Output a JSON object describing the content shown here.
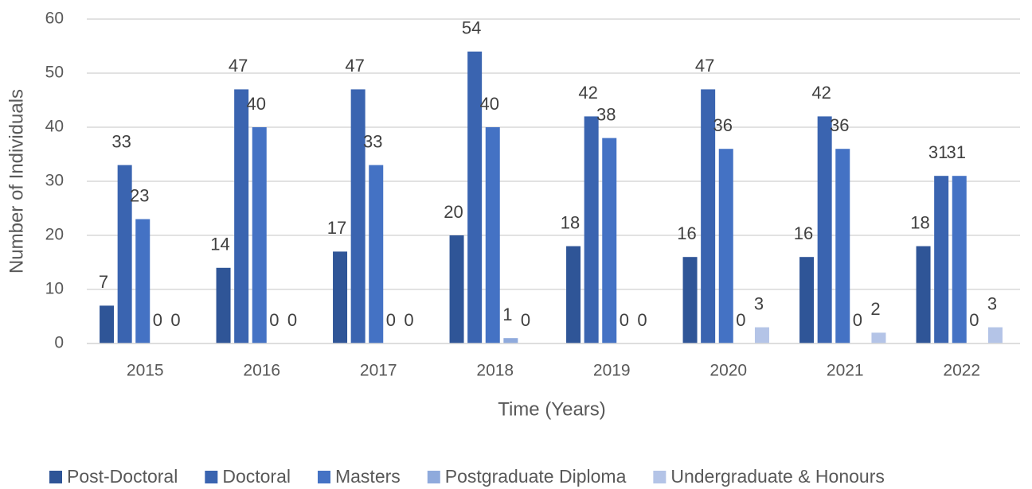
{
  "chart_data": {
    "type": "bar",
    "x_label": "Time (Years)",
    "y_label": "Number of Individuals",
    "categories": [
      "2015",
      "2016",
      "2017",
      "2018",
      "2019",
      "2020",
      "2021",
      "2022"
    ],
    "series": [
      {
        "name": "Post-Doctoral",
        "color": "#2f5597",
        "values": [
          7,
          14,
          17,
          20,
          18,
          16,
          16,
          18
        ]
      },
      {
        "name": "Doctoral",
        "color": "#3a64b0",
        "values": [
          33,
          47,
          47,
          54,
          42,
          47,
          42,
          31
        ]
      },
      {
        "name": "Masters",
        "color": "#4472c4",
        "values": [
          23,
          40,
          33,
          40,
          38,
          36,
          36,
          31
        ]
      },
      {
        "name": "Postgraduate Diploma",
        "color": "#8faadc",
        "values": [
          0,
          0,
          0,
          1,
          0,
          0,
          0,
          0
        ]
      },
      {
        "name": "Undergraduate & Honours",
        "color": "#b4c4e7",
        "values": [
          0,
          0,
          0,
          0,
          0,
          3,
          2,
          3
        ]
      }
    ],
    "ylim": [
      0,
      60
    ],
    "yticks": [
      0,
      10,
      20,
      30,
      40,
      50,
      60
    ],
    "grid": true,
    "legend": "bottom"
  }
}
